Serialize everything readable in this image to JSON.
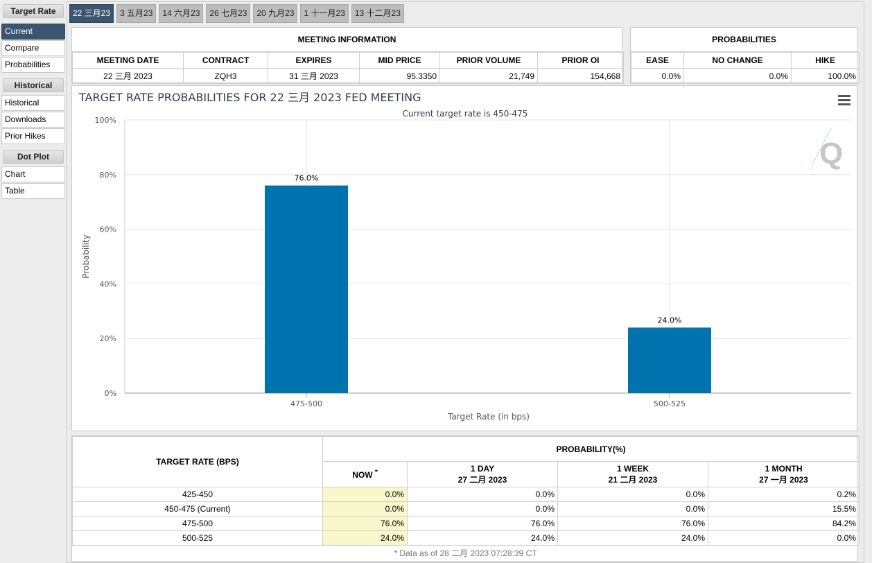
{
  "nav": {
    "target_rate_header": "Target Rate",
    "target_items": [
      "Current",
      "Compare",
      "Probabilities"
    ],
    "historical_header": "Historical",
    "historical_items": [
      "Historical",
      "Downloads",
      "Prior Hikes"
    ],
    "dotplot_header": "Dot Plot",
    "dotplot_items": [
      "Chart",
      "Table"
    ]
  },
  "tabs": [
    "22 三月23",
    "3 五月23",
    "14 六月23",
    "26 七月23",
    "20 九月23",
    "1 十一月23",
    "13 十二月23"
  ],
  "meeting_info": {
    "title": "MEETING INFORMATION",
    "headers": [
      "MEETING DATE",
      "CONTRACT",
      "EXPIRES",
      "MID PRICE",
      "PRIOR VOLUME",
      "PRIOR OI"
    ],
    "values": [
      "22 三月 2023",
      "ZQH3",
      "31 三月 2023",
      "95.3350",
      "21,749",
      "154,668"
    ]
  },
  "probabilities": {
    "title": "PROBABILITIES",
    "headers": [
      "EASE",
      "NO CHANGE",
      "HIKE"
    ],
    "values": [
      "0.0%",
      "0.0%",
      "100.0%"
    ]
  },
  "chart_data": {
    "type": "bar",
    "title": "TARGET RATE PROBABILITIES FOR 22 三月 2023 FED MEETING",
    "subtitle": "Current target rate is 450-475",
    "xlabel": "Target Rate (in bps)",
    "ylabel": "Probability",
    "categories": [
      "475-500",
      "500-525"
    ],
    "values": [
      76.0,
      24.0
    ],
    "data_labels": [
      "76.0%",
      "24.0%"
    ],
    "ylim": [
      0,
      100
    ],
    "yticks": [
      "0%",
      "20%",
      "40%",
      "60%",
      "80%",
      "100%"
    ],
    "grid": true,
    "bar_color": "#0073ae",
    "watermark": "Q"
  },
  "prob_table": {
    "title": "PROBABILITY(%)",
    "rate_header": "TARGET RATE (BPS)",
    "now_header": "NOW",
    "now_mark": "*",
    "columns": [
      {
        "label": "1 DAY",
        "date": "27 二月 2023"
      },
      {
        "label": "1 WEEK",
        "date": "21 二月 2023"
      },
      {
        "label": "1 MONTH",
        "date": "27 一月 2023"
      }
    ],
    "rows": [
      {
        "rate": "425-450",
        "now": "0.0%",
        "day": "0.0%",
        "week": "0.0%",
        "month": "0.2%"
      },
      {
        "rate": "450-475 (Current)",
        "now": "0.0%",
        "day": "0.0%",
        "week": "0.0%",
        "month": "15.5%"
      },
      {
        "rate": "475-500",
        "now": "76.0%",
        "day": "76.0%",
        "week": "76.0%",
        "month": "84.2%"
      },
      {
        "rate": "500-525",
        "now": "24.0%",
        "day": "24.0%",
        "week": "24.0%",
        "month": "0.0%"
      }
    ],
    "footnote": "* Data as of 28 二月 2023 07:28:39 CT"
  },
  "colors": {
    "accent": "#3c556f",
    "bar": "#0073ae",
    "now_bg": "#f8f8cc"
  }
}
